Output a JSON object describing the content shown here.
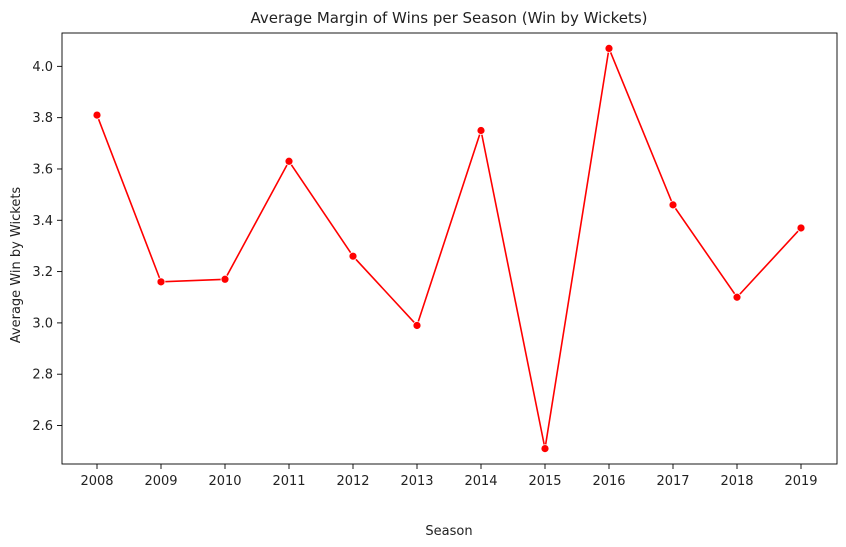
{
  "chart_data": {
    "type": "line",
    "title": "Average Margin of Wins per Season (Win by Wickets)",
    "xlabel": "Season",
    "ylabel": "Average Win by Wickets",
    "x": [
      "2008",
      "2009",
      "2010",
      "2011",
      "2012",
      "2013",
      "2014",
      "2015",
      "2016",
      "2017",
      "2018",
      "2019"
    ],
    "series": [
      {
        "values": [
          3.81,
          3.16,
          3.17,
          3.63,
          3.26,
          2.99,
          3.75,
          2.51,
          4.07,
          3.46,
          3.1,
          3.37
        ],
        "color": "#ff0000",
        "marker": "circle"
      }
    ],
    "yticks": [
      "2.6",
      "2.8",
      "3.0",
      "3.2",
      "3.4",
      "3.6",
      "3.8",
      "4.0"
    ],
    "ylim": [
      2.45,
      4.13
    ],
    "grid": false,
    "legend": "none"
  }
}
